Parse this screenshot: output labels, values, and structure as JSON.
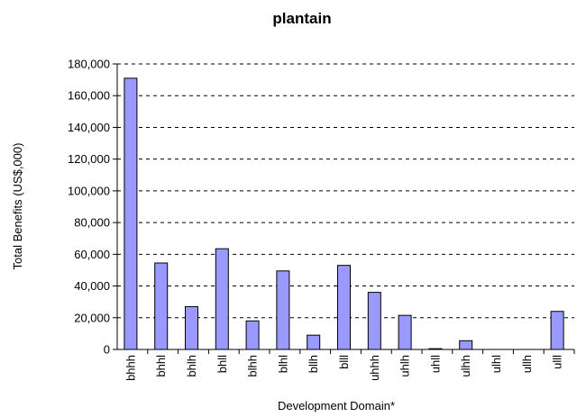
{
  "chart_data": {
    "type": "bar",
    "title": "plantain",
    "xlabel": "Development Domain*",
    "ylabel": "Total Benefits (US$,000)",
    "ylim": [
      0,
      180000
    ],
    "yticks": [
      "0",
      "20,000",
      "40,000",
      "60,000",
      "80,000",
      "100,000",
      "120,000",
      "140,000",
      "160,000",
      "180,000"
    ],
    "grid": true,
    "categories": [
      "bhhh",
      "bhhl",
      "bhlh",
      "bhll",
      "blhh",
      "blhl",
      "bllh",
      "blll",
      "uhhh",
      "uhlh",
      "uhll",
      "ulhh",
      "ulhl",
      "ullh",
      "ulll"
    ],
    "values": [
      171000,
      54500,
      27000,
      63500,
      18000,
      49500,
      9000,
      53000,
      36000,
      21500,
      500,
      5500,
      0,
      0,
      24000
    ],
    "bar_color": "#9999ff"
  }
}
